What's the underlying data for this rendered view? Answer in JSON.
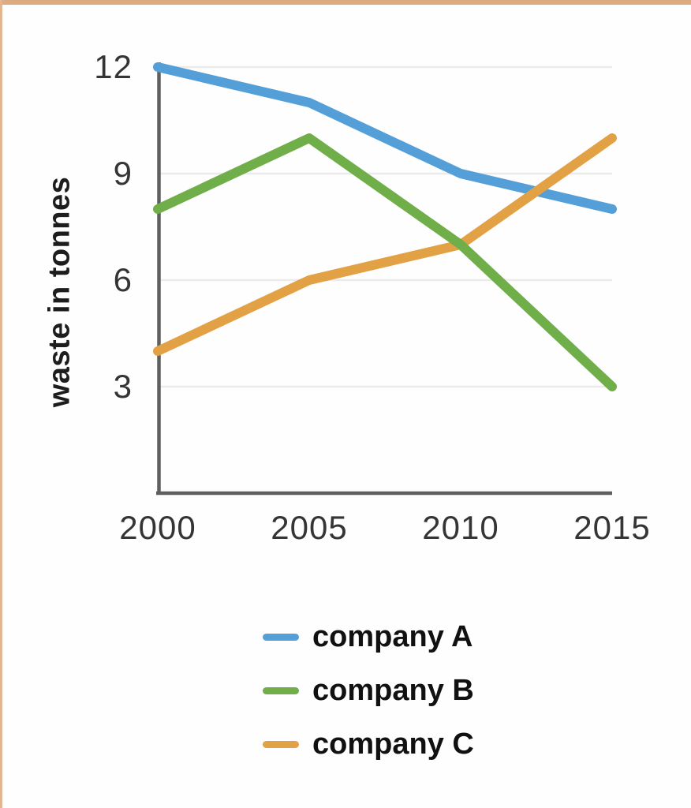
{
  "page": {
    "frame_top_color": "#dcab80",
    "frame_left_color": "#e2b690",
    "background": "#fefefe"
  },
  "chart_data": {
    "type": "line",
    "title": "",
    "xlabel": "",
    "ylabel": "waste in tonnes",
    "x": [
      2000,
      2005,
      2010,
      2015
    ],
    "x_tick_labels": [
      "2000",
      "2005",
      "2010",
      "2015"
    ],
    "y_ticks": [
      3,
      6,
      9,
      12
    ],
    "y_tick_labels": [
      "3",
      "6",
      "9",
      "12"
    ],
    "ylim": [
      0,
      12.2
    ],
    "grid": true,
    "grid_color": "#ebebeb",
    "axis_color": "#5f5f5f",
    "tick_label_color": "#353535",
    "legend_position": "bottom-center",
    "series": [
      {
        "name": "company A",
        "color": "#549fd7",
        "values": [
          12,
          11,
          9,
          8
        ]
      },
      {
        "name": "company B",
        "color": "#6fae49",
        "values": [
          8,
          10,
          7,
          3
        ]
      },
      {
        "name": "company C",
        "color": "#e2a145",
        "values": [
          4,
          6,
          7,
          10
        ]
      }
    ],
    "draw_order": [
      0,
      2,
      1
    ]
  }
}
